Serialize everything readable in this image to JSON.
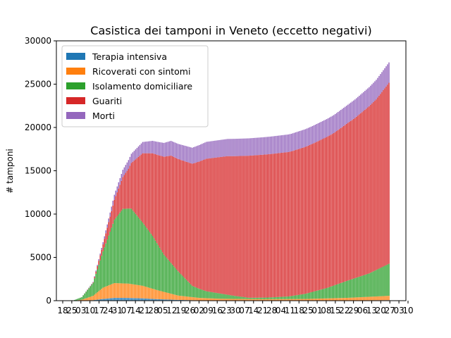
{
  "chart_data": {
    "type": "bar",
    "stacked": true,
    "title": "Casistica dei tamponi in Veneto (eccetto negativi)",
    "xlabel": "",
    "ylabel": "# tamponi",
    "ylim": [
      0,
      30000
    ],
    "yticks": [
      "0",
      "5000",
      "10000",
      "15000",
      "20000",
      "25000",
      "30000"
    ],
    "xtick_labels": [
      "18",
      "25",
      "03",
      "10",
      "17",
      "24",
      "31",
      "07",
      "14",
      "21",
      "28",
      "05",
      "12",
      "19",
      "26",
      "02",
      "09",
      "16",
      "23",
      "30",
      "07",
      "14",
      "21",
      "28",
      "04",
      "11",
      "18",
      "25",
      "01",
      "08",
      "15",
      "22",
      "29",
      "06",
      "13",
      "20",
      "27",
      "03",
      "10"
    ],
    "legend": {
      "position": "upper-left"
    },
    "colors": {
      "terapia": "#1f77b4",
      "ricoverati": "#ff7f0e",
      "isolamento": "#2ca02c",
      "guariti": "#d62728",
      "morti": "#9467bd"
    },
    "days_count": 230,
    "series": [
      {
        "key": "terapia",
        "name": "Terapia intensiva",
        "anchors": [
          [
            0,
            0
          ],
          [
            6,
            0
          ],
          [
            12,
            10
          ],
          [
            20,
            60
          ],
          [
            27,
            200
          ],
          [
            35,
            330
          ],
          [
            45,
            320
          ],
          [
            55,
            270
          ],
          [
            65,
            180
          ],
          [
            80,
            90
          ],
          [
            95,
            40
          ],
          [
            110,
            20
          ],
          [
            140,
            10
          ],
          [
            170,
            15
          ],
          [
            200,
            30
          ],
          [
            229,
            60
          ]
        ]
      },
      {
        "key": "ricoverati",
        "name": "Ricoverati con sintomi",
        "anchors": [
          [
            0,
            0
          ],
          [
            6,
            5
          ],
          [
            12,
            100
          ],
          [
            20,
            500
          ],
          [
            27,
            1300
          ],
          [
            35,
            1700
          ],
          [
            45,
            1650
          ],
          [
            55,
            1450
          ],
          [
            65,
            1050
          ],
          [
            80,
            500
          ],
          [
            95,
            280
          ],
          [
            110,
            200
          ],
          [
            140,
            160
          ],
          [
            170,
            180
          ],
          [
            200,
            300
          ],
          [
            229,
            500
          ]
        ]
      },
      {
        "key": "isolamento",
        "name": "Isolamento domiciliare",
        "anchors": [
          [
            0,
            0
          ],
          [
            6,
            20
          ],
          [
            12,
            300
          ],
          [
            20,
            1500
          ],
          [
            27,
            4200
          ],
          [
            35,
            7300
          ],
          [
            41,
            8600
          ],
          [
            47,
            8700
          ],
          [
            55,
            7300
          ],
          [
            62,
            6100
          ],
          [
            70,
            4300
          ],
          [
            80,
            2800
          ],
          [
            90,
            1300
          ],
          [
            100,
            800
          ],
          [
            110,
            600
          ],
          [
            120,
            350
          ],
          [
            130,
            150
          ],
          [
            145,
            200
          ],
          [
            158,
            300
          ],
          [
            170,
            600
          ],
          [
            185,
            1200
          ],
          [
            200,
            2000
          ],
          [
            215,
            2700
          ],
          [
            229,
            3700
          ]
        ]
      },
      {
        "key": "guariti",
        "name": "Guariti",
        "anchors": [
          [
            0,
            0
          ],
          [
            12,
            0
          ],
          [
            20,
            50
          ],
          [
            27,
            800
          ],
          [
            35,
            2300
          ],
          [
            45,
            4600
          ],
          [
            55,
            8000
          ],
          [
            65,
            10200
          ],
          [
            75,
            12400
          ],
          [
            90,
            14100
          ],
          [
            100,
            15300
          ],
          [
            115,
            16000
          ],
          [
            130,
            16400
          ],
          [
            145,
            16550
          ],
          [
            160,
            16700
          ],
          [
            175,
            17100
          ],
          [
            190,
            17600
          ],
          [
            205,
            18500
          ],
          [
            220,
            19700
          ],
          [
            229,
            20900
          ]
        ]
      },
      {
        "key": "morti",
        "name": "Morti",
        "anchors": [
          [
            0,
            0
          ],
          [
            12,
            5
          ],
          [
            20,
            60
          ],
          [
            27,
            250
          ],
          [
            35,
            600
          ],
          [
            45,
            1000
          ],
          [
            55,
            1300
          ],
          [
            65,
            1500
          ],
          [
            75,
            1700
          ],
          [
            85,
            1800
          ],
          [
            100,
            1950
          ],
          [
            120,
            2000
          ],
          [
            150,
            2020
          ],
          [
            175,
            2050
          ],
          [
            200,
            2100
          ],
          [
            215,
            2200
          ],
          [
            229,
            2350
          ]
        ]
      }
    ]
  }
}
